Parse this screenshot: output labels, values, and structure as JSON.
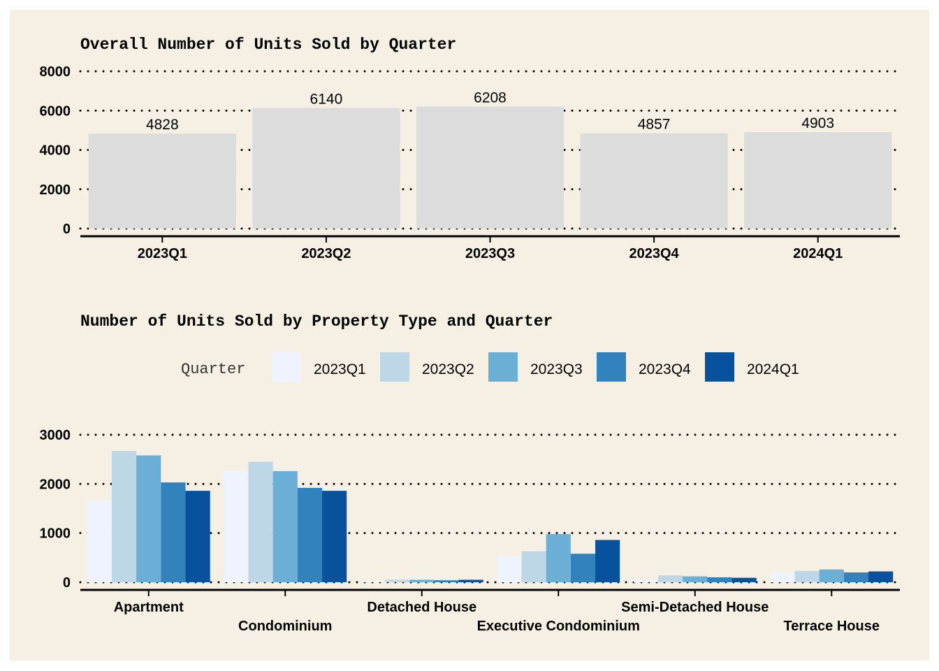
{
  "chart_data": [
    {
      "type": "bar",
      "title": "Overall Number of Units Sold by Quarter",
      "categories": [
        "2023Q1",
        "2023Q2",
        "2023Q3",
        "2023Q4",
        "2024Q1"
      ],
      "values": [
        4828,
        6140,
        6208,
        4857,
        4903
      ],
      "data_labels": [
        "4828",
        "6140",
        "6208",
        "4857",
        "4903"
      ],
      "ylim": [
        0,
        8000
      ],
      "yticks": [
        "0",
        "2000",
        "4000",
        "6000",
        "8000"
      ],
      "grid": "horizontal dotted",
      "bar_color": "#dcdcdc"
    },
    {
      "type": "bar",
      "title": "Number of Units Sold by Property Type and Quarter",
      "categories": [
        "Apartment",
        "Condominium",
        "Detached House",
        "Executive Condominium",
        "Semi-Detached House",
        "Terrace House"
      ],
      "legend_title": "Quarter",
      "legend_position": "top",
      "series": [
        {
          "name": "2023Q1",
          "color": "#eff3ff",
          "values": [
            1660,
            2270,
            20,
            530,
            60,
            200
          ]
        },
        {
          "name": "2023Q2",
          "color": "#bdd7e7",
          "values": [
            2670,
            2450,
            50,
            630,
            140,
            230
          ]
        },
        {
          "name": "2023Q3",
          "color": "#6baed6",
          "values": [
            2580,
            2260,
            50,
            980,
            120,
            260
          ]
        },
        {
          "name": "2023Q4",
          "color": "#3182bd",
          "values": [
            2030,
            1920,
            40,
            580,
            100,
            200
          ]
        },
        {
          "name": "2024Q1",
          "color": "#08519c",
          "values": [
            1860,
            1860,
            50,
            860,
            90,
            220
          ]
        }
      ],
      "ylim": [
        0,
        3000
      ],
      "yticks": [
        "0",
        "1000",
        "2000",
        "3000"
      ],
      "grid": "horizontal dotted"
    }
  ]
}
